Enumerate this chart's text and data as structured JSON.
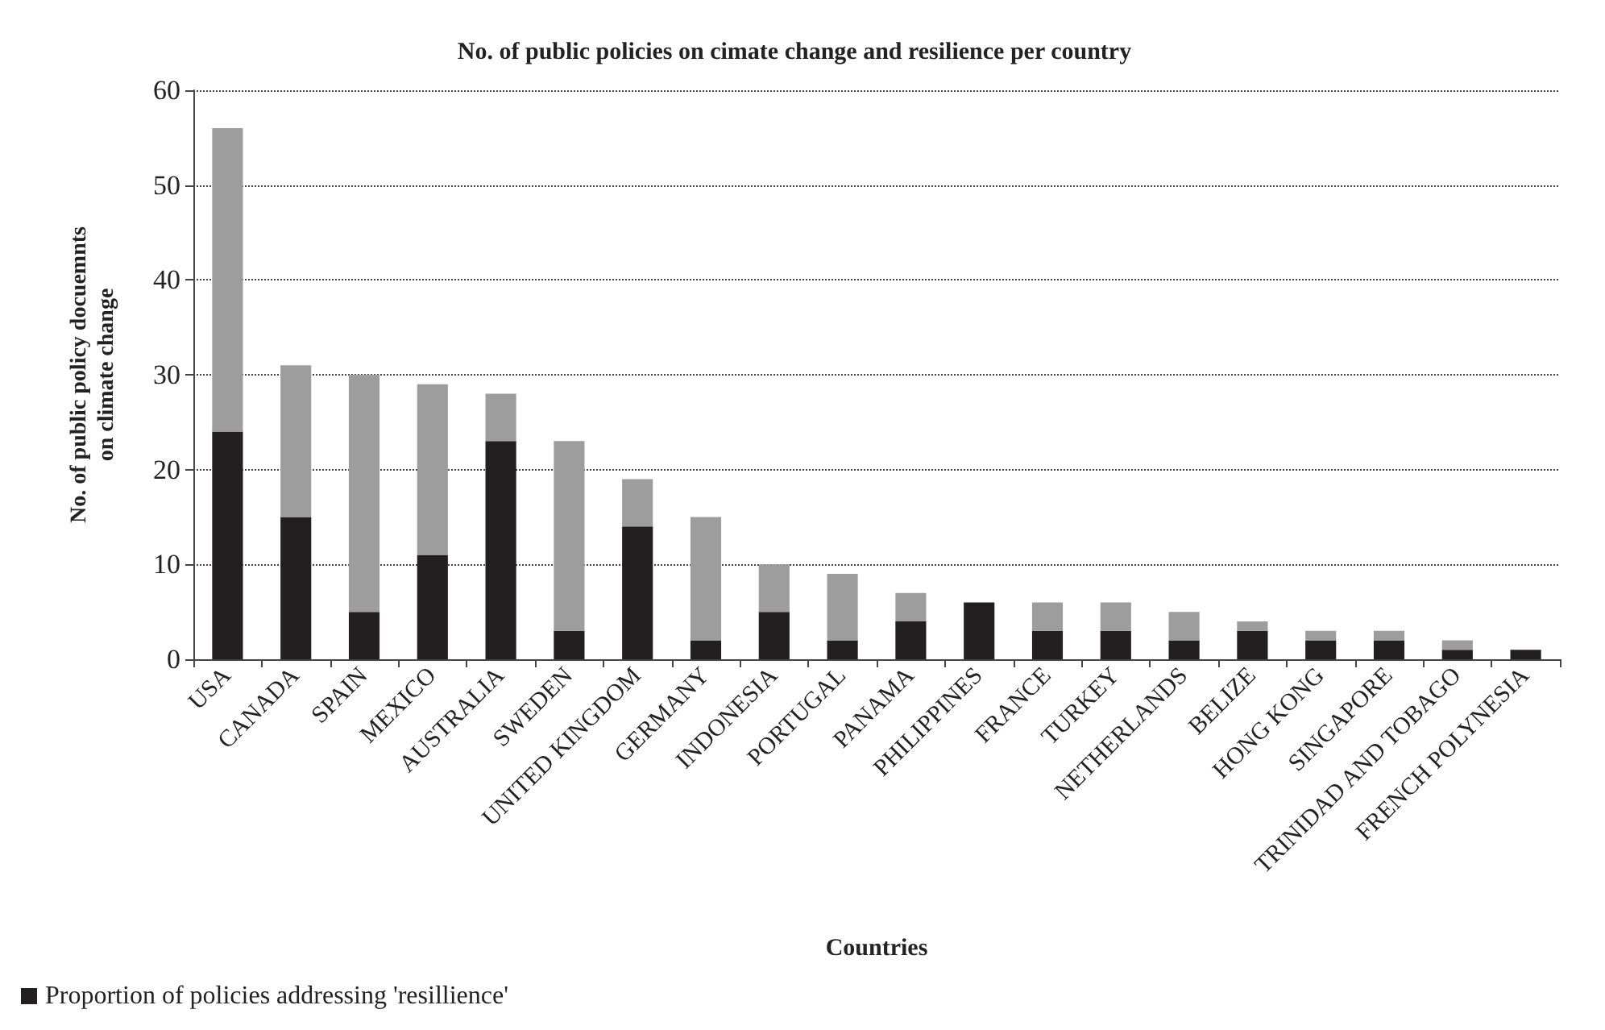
{
  "chart_data": {
    "type": "bar",
    "title": "No. of public policies on cimate change and resilience per country",
    "xlabel": "Countries",
    "ylabel": "No. of public policy docuemnts\non climate change",
    "categories": [
      "USA",
      "CANADA",
      "SPAIN",
      "MEXICO",
      "AUSTRALIA",
      "SWEDEN",
      "UNITED KINGDOM",
      "GERMANY",
      "INDONESIA",
      "PORTUGAL",
      "PANAMA",
      "PHILIPPINES",
      "FRANCE",
      "TURKEY",
      "NETHERLANDS",
      "BELIZE",
      "HONG KONG",
      "SINGAPORE",
      "TRINIDAD AND TOBAGO",
      "FRENCH POLYNESIA"
    ],
    "stacked": true,
    "series": [
      {
        "name": "Proportion of policies addressing 'resillience'",
        "color": "#231f20",
        "values": [
          24,
          15,
          5,
          11,
          23,
          3,
          14,
          2,
          5,
          2,
          4,
          6,
          3,
          3,
          2,
          3,
          2,
          2,
          1,
          1
        ]
      },
      {
        "color": "#9d9d9d",
        "values": [
          32,
          16,
          25,
          18,
          5,
          20,
          5,
          13,
          5,
          7,
          3,
          0,
          3,
          3,
          3,
          1,
          1,
          1,
          1,
          0
        ]
      }
    ],
    "ylim": [
      0,
      60
    ],
    "yticks": [
      0,
      10,
      20,
      30,
      40,
      50,
      60
    ],
    "grid": "y",
    "legend": "bottom left"
  }
}
